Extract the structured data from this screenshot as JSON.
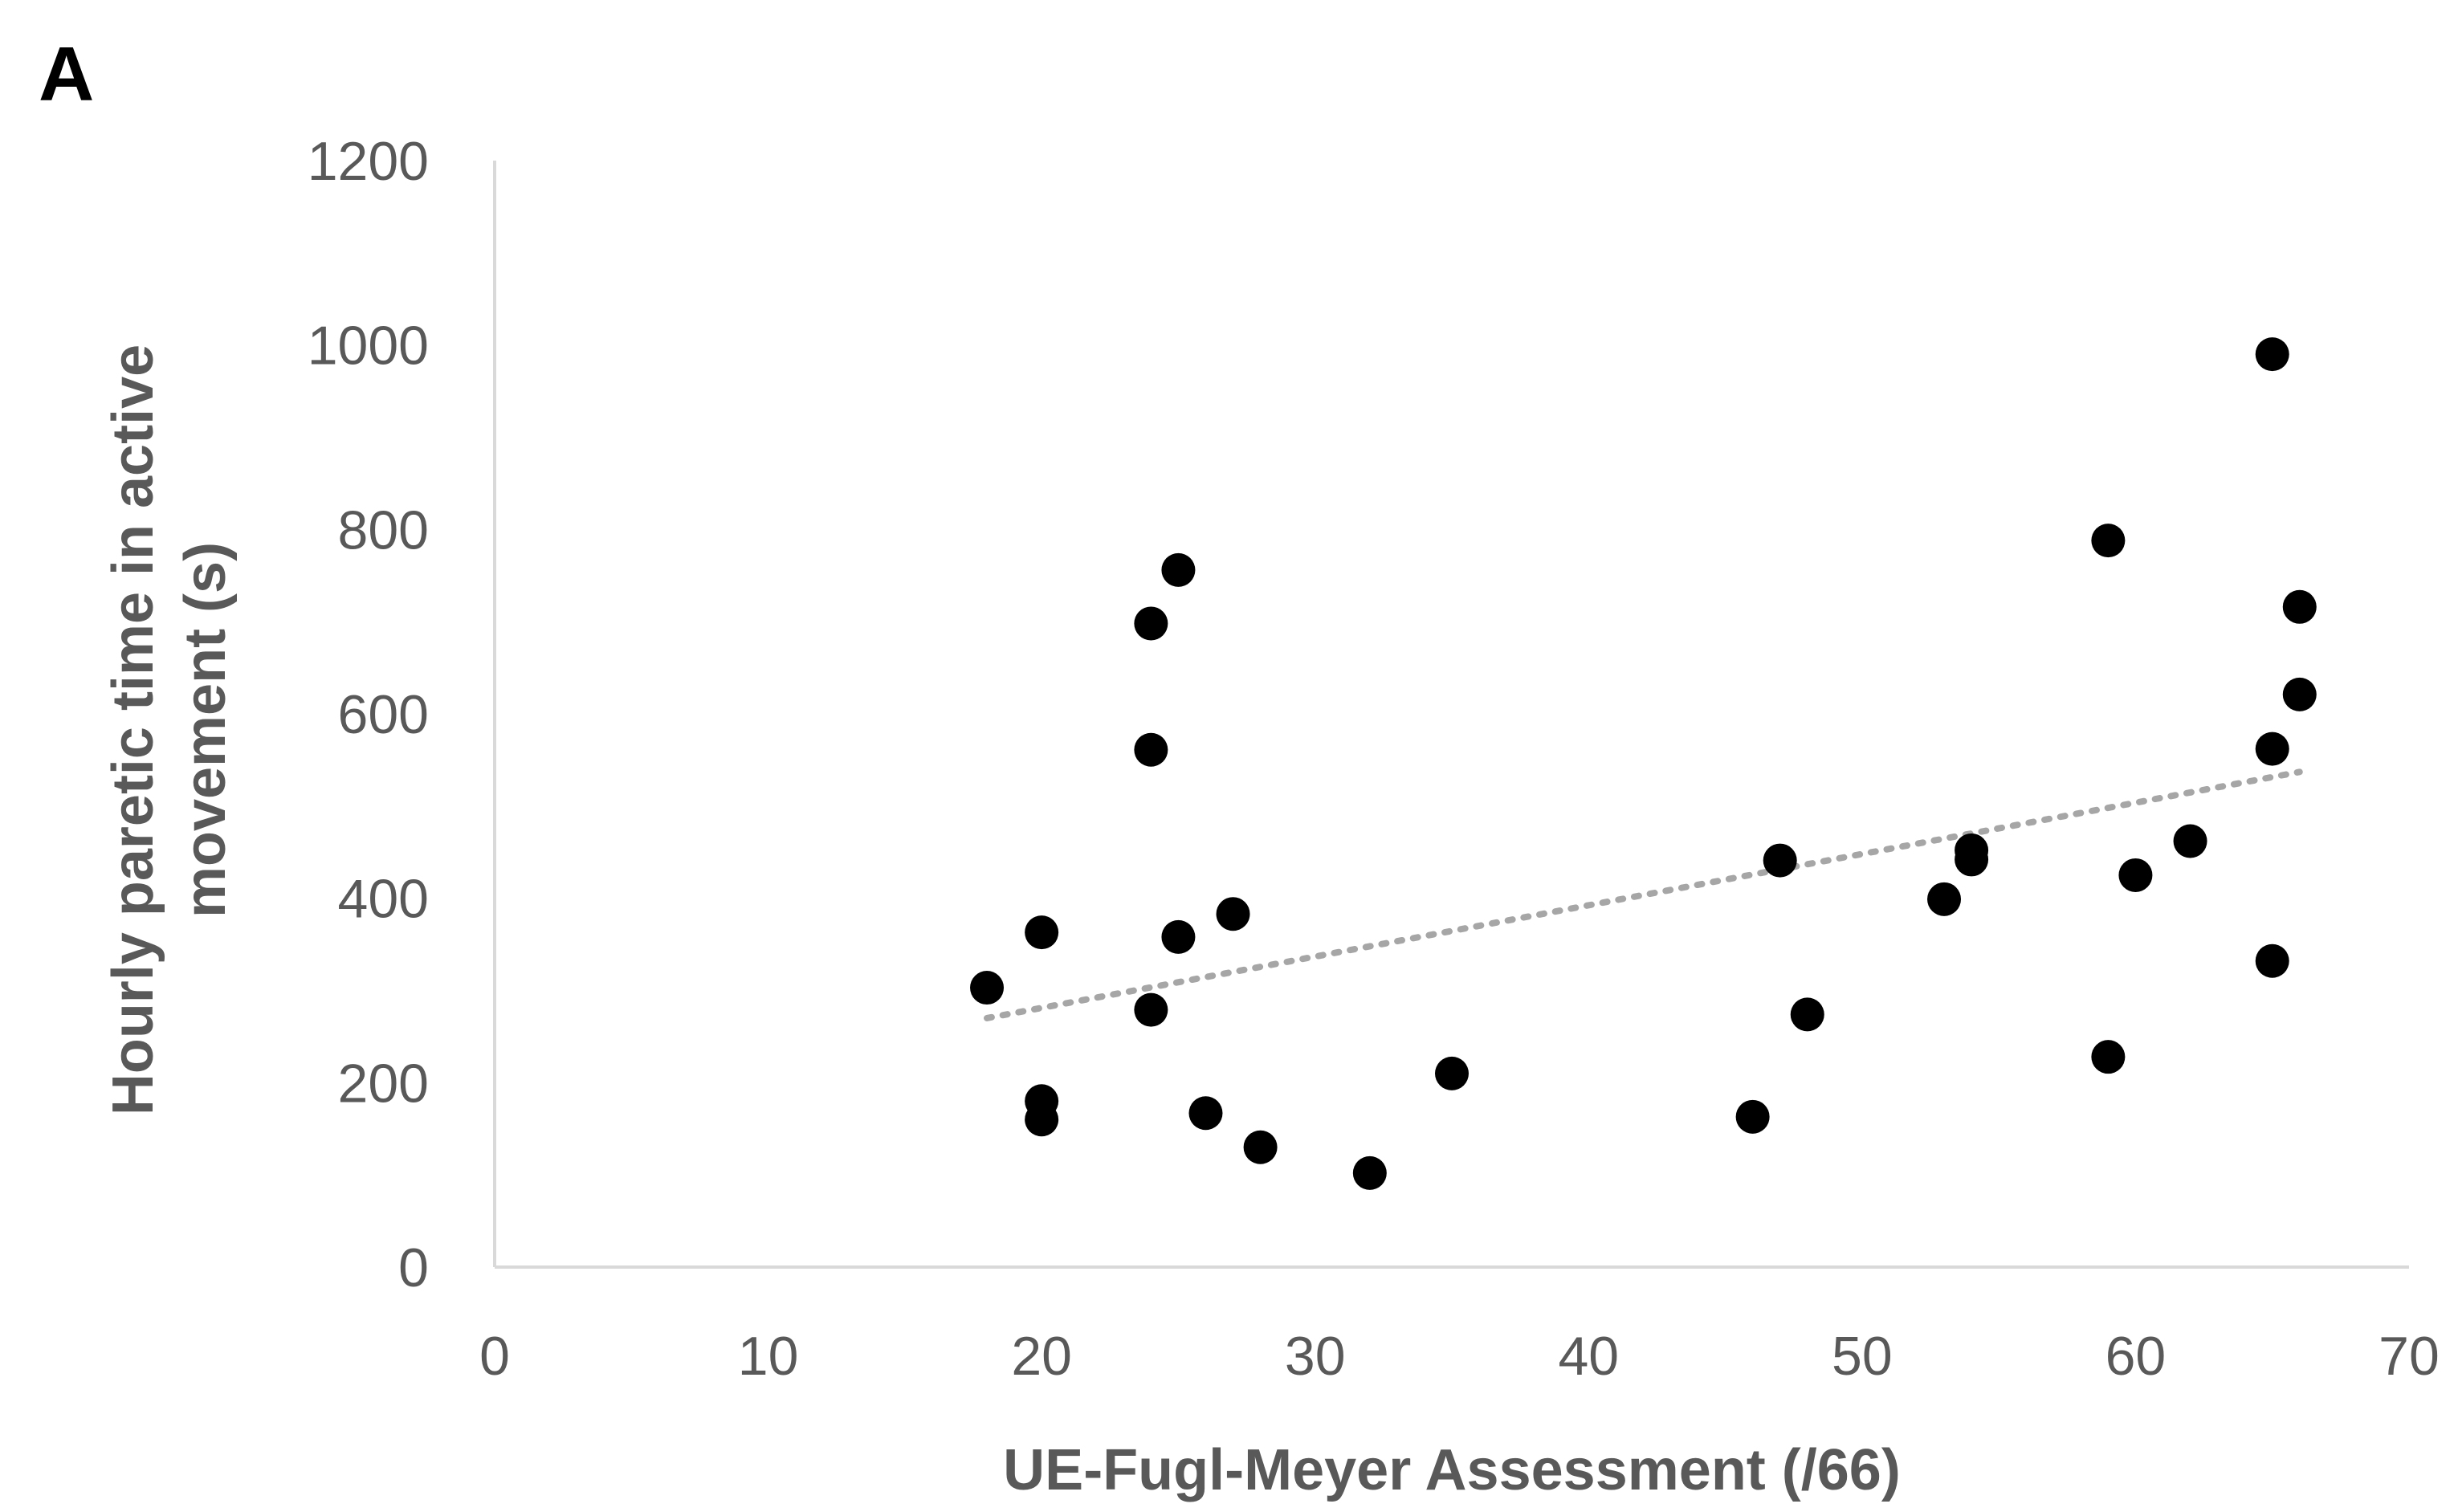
{
  "panel_label": "A",
  "chart_data": {
    "type": "scatter",
    "xlabel": "UE-Fugl-Meyer Assessment (/66)",
    "ylabel_lines": [
      "Hourly paretic time in active",
      "movement (s)"
    ],
    "xlim": [
      0,
      70
    ],
    "ylim": [
      0,
      1200
    ],
    "x_ticks": [
      0,
      10,
      20,
      30,
      40,
      50,
      60,
      70
    ],
    "y_ticks": [
      0,
      200,
      400,
      600,
      800,
      1000,
      1200
    ],
    "grid": false,
    "legend": false,
    "colors": {
      "points": "#000000",
      "trendline": "#a6a6a6",
      "axis": "#d9d9d9",
      "text": "#595959"
    },
    "points": [
      {
        "x": 18,
        "y": 303
      },
      {
        "x": 20,
        "y": 363
      },
      {
        "x": 20,
        "y": 180
      },
      {
        "x": 20,
        "y": 160
      },
      {
        "x": 24,
        "y": 698
      },
      {
        "x": 24,
        "y": 561
      },
      {
        "x": 24,
        "y": 279
      },
      {
        "x": 25,
        "y": 756
      },
      {
        "x": 25,
        "y": 358
      },
      {
        "x": 26,
        "y": 167
      },
      {
        "x": 27,
        "y": 383
      },
      {
        "x": 28,
        "y": 130
      },
      {
        "x": 32,
        "y": 102
      },
      {
        "x": 35,
        "y": 210
      },
      {
        "x": 46,
        "y": 163
      },
      {
        "x": 47,
        "y": 441
      },
      {
        "x": 48,
        "y": 274
      },
      {
        "x": 53,
        "y": 399
      },
      {
        "x": 54,
        "y": 452
      },
      {
        "x": 54,
        "y": 442
      },
      {
        "x": 59,
        "y": 788
      },
      {
        "x": 59,
        "y": 228
      },
      {
        "x": 60,
        "y": 425
      },
      {
        "x": 62,
        "y": 462
      },
      {
        "x": 65,
        "y": 990
      },
      {
        "x": 65,
        "y": 562
      },
      {
        "x": 65,
        "y": 332
      },
      {
        "x": 66,
        "y": 716
      },
      {
        "x": 66,
        "y": 621
      }
    ],
    "trendline": {
      "type": "linear",
      "style": "dotted",
      "x_start": 18,
      "y_start": 270,
      "x_end": 66,
      "y_end": 537
    }
  }
}
